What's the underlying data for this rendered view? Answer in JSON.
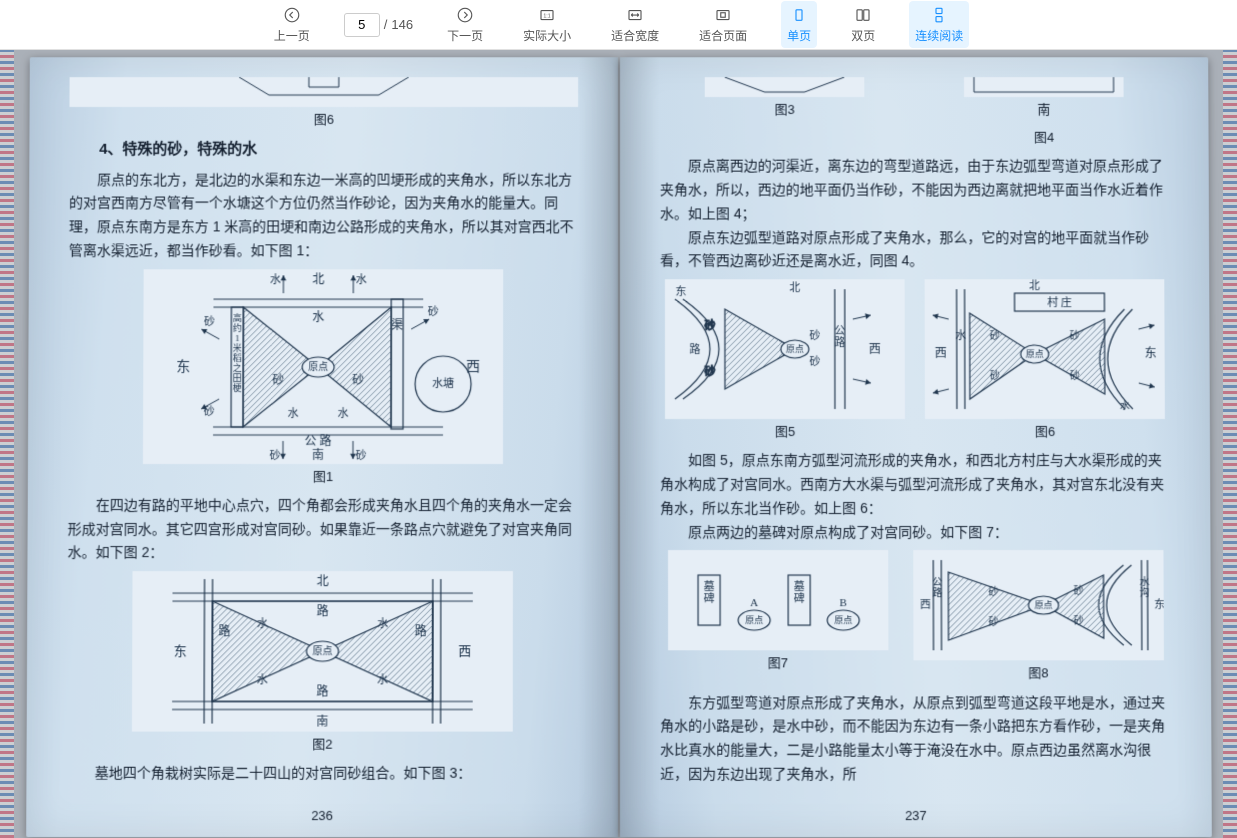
{
  "toolbar": {
    "prev": "上一页",
    "next": "下一页",
    "page_current": "5",
    "page_total": "146",
    "actual_size": "实际大小",
    "fit_width": "适合宽度",
    "fit_page": "适合页面",
    "single_page": "单页",
    "double_page": "双页",
    "continuous": "连续阅读"
  },
  "left_page": {
    "top_fig_label": "图6",
    "section_title": "4、特殊的砂，特殊的水",
    "para1": "原点的东北方，是北边的水渠和东边一米高的凹埂形成的夹角水，所以东北方的对宫西南方尽管有一个水塘这个方位仍然当作砂论，因为夹角水的能量大。同理，原点东南方是东方 1 米高的田埂和南边公路形成的夹角水，所以其对宫西北不管离水渠远近，都当作砂看。如下图 1：",
    "para2": "在四边有路的平地中心点穴，四个角都会形成夹角水且四个角的夹角水一定会形成对宫同水。其它四宫形成对宫同砂。如果靠近一条路点穴就避免了对宫夹角同水。如下图 2：",
    "para3": "墓地四个角栽树实际是二十四山的对宫同砂组合。如下图 3：",
    "fig1_label": "图1",
    "fig2_label": "图2",
    "pagenum": "236",
    "fig1": {
      "labels": {
        "n": "北",
        "s": "南",
        "e": "东",
        "w": "西"
      },
      "markers": {
        "sha": "砂",
        "shui": "水",
        "gonglu": "公 路",
        "qu": "渠",
        "shuitang": "水塘",
        "yuandian": "原点",
        "tiangeng": "高约1米稻之田梗"
      }
    },
    "fig2": {
      "labels": {
        "n": "北",
        "s": "南",
        "e": "东",
        "w": "西"
      },
      "markers": {
        "lu": "路",
        "shui": "水",
        "yuandian": "原点"
      }
    }
  },
  "right_page": {
    "top_fig3_label": "图3",
    "top_fig4_label": "图4",
    "top_compass": "南",
    "para1": "原点离西边的河渠近，离东边的弯型道路远，由于东边弧型弯道对原点形成了夹角水，所以，西边的地平面仍当作砂，不能因为西边离就把地平面当作水近着作水。如上图 4；",
    "para2": "原点东边弧型道路对原点形成了夹角水，那么，它的对宫的地平面就当作砂看，不管西边离砂近还是离水近，同图 4。",
    "para3": "如图 5，原点东南方弧型河流形成的夹角水，和西北方村庄与大水渠形成的夹角水构成了对宫同水。西南方大水渠与弧型河流形成了夹角水，其对宫东北没有夹角水，所以东北当作砂。如上图 6：",
    "para4": "原点两边的墓碑对原点构成了对宫同砂。如下图 7：",
    "para5": "东方弧型弯道对原点形成了夹角水，从原点到弧型弯道这段平地是水，通过夹角水的小路是砂，是水中砂，而不能因为东边有一条小路把东方看作砂，一是夹角水比真水的能量大，二是小路能量太小等于淹没在水中。原点西边虽然离水沟很近，因为东边出现了夹角水，所",
    "fig5_label": "图5",
    "fig6_label": "图6",
    "fig7_label": "图7",
    "fig8_label": "图8",
    "pagenum": "237",
    "fig5": {
      "labels": {
        "n": "北",
        "e": "东",
        "w": "西"
      },
      "markers": {
        "sha": "砂",
        "lu": "路",
        "gonglu": "公路",
        "yuandian": "原点"
      }
    },
    "fig6": {
      "labels": {
        "n": "北",
        "e": "东",
        "w": "西"
      },
      "markers": {
        "sha": "砂",
        "shui": "水",
        "cunzhuang": "村 庄",
        "yuandian": "原点"
      }
    },
    "fig7": {
      "markers": {
        "mubei": "墓碑",
        "yuandian": "原点",
        "a": "A",
        "b": "B"
      }
    },
    "fig8": {
      "labels": {
        "e": "东",
        "w": "西"
      },
      "markers": {
        "gonglu": "公路",
        "shuigou": "水沟",
        "sha": "砂",
        "yuandian": "原点"
      }
    }
  },
  "colors": {
    "toolbar_bg": "#ffffff",
    "toolbar_text": "#555555",
    "active": "#1890ff",
    "page_bg": "#d2e1ee",
    "ink": "#142030",
    "diagram_stroke": "#20364e",
    "hatch": "#6a7f93"
  }
}
